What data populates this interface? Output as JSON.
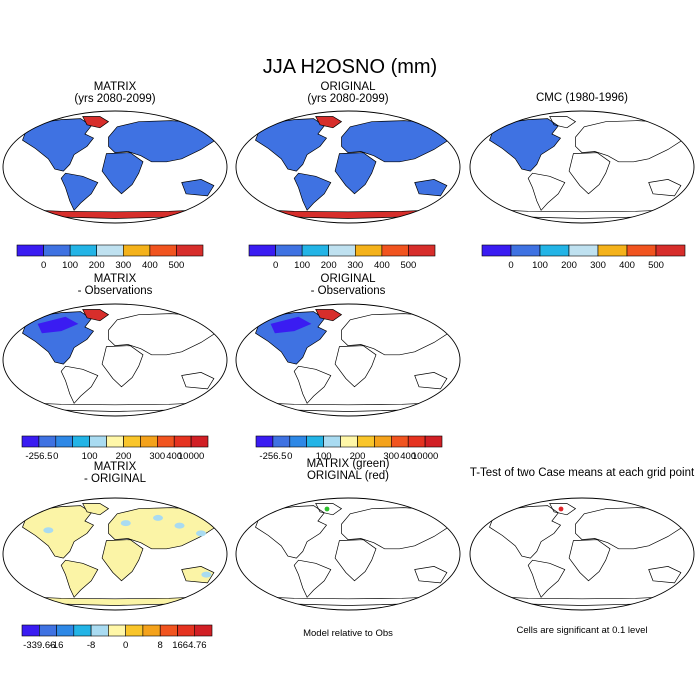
{
  "figure": {
    "title": "JJA H2OSNO (mm)"
  },
  "colors": {
    "scale6": [
      "#3a1cf2",
      "#3f72e2",
      "#23b4e6",
      "#bfe1f0",
      "#f4b21b",
      "#f1541f",
      "#d72e2b"
    ],
    "scale11": [
      "#3a1cf2",
      "#3f72e2",
      "#2e88e6",
      "#23b4e6",
      "#a9dbf1",
      "#fff7a8",
      "#f9c52a",
      "#f4a21b",
      "#f1541f",
      "#e53320",
      "#d11f25"
    ],
    "blue_fill": "#3f72e2",
    "red_fill": "#d72e2b",
    "diff_fill": "#fbf4a6",
    "diff_spot": "#a9dbf1"
  },
  "chart_data": [
    {
      "id": "matrix",
      "type": "heatmap",
      "title_lines": [
        "MATRIX",
        "(yrs 2080-2099)"
      ],
      "fill_pattern": "all-land",
      "colorbar": {
        "ticks": [
          "0",
          "100",
          "200",
          "300",
          "400",
          "500"
        ]
      }
    },
    {
      "id": "original",
      "type": "heatmap",
      "title_lines": [
        "ORIGINAL",
        "(yrs 2080-2099)"
      ],
      "fill_pattern": "all-land",
      "colorbar": {
        "ticks": [
          "0",
          "100",
          "200",
          "300",
          "400",
          "500"
        ]
      }
    },
    {
      "id": "cmc",
      "type": "heatmap",
      "title_lines": [
        "CMC (1980-1996)"
      ],
      "fill_pattern": "north-america",
      "colorbar": {
        "ticks": [
          "0",
          "100",
          "200",
          "300",
          "400",
          "500"
        ]
      }
    },
    {
      "id": "matrix-obs",
      "type": "heatmap",
      "title_lines": [
        "MATRIX",
        "- Observations"
      ],
      "fill_pattern": "north-america-diff",
      "colorbar": {
        "ticks": [
          "-256.5",
          "0",
          "100",
          "200",
          "300",
          "400",
          "10000"
        ]
      }
    },
    {
      "id": "original-obs",
      "type": "heatmap",
      "title_lines": [
        "ORIGINAL",
        "- Observations"
      ],
      "fill_pattern": "north-america-diff",
      "colorbar": {
        "ticks": [
          "-256.5",
          "0",
          "100",
          "200",
          "300",
          "400",
          "10000"
        ]
      }
    },
    {
      "id": "matrix-original",
      "type": "heatmap",
      "title_lines": [
        "MATRIX",
        "- ORIGINAL"
      ],
      "fill_pattern": "diff-land",
      "colorbar": {
        "ticks": [
          "-339.66",
          "-16",
          "-8",
          "0",
          "8",
          "16",
          "64.76"
        ]
      }
    },
    {
      "id": "sig-model-obs",
      "type": "heatmap",
      "title_lines": [
        "MATRIX (green)",
        "ORIGINAL (red)"
      ],
      "fill_pattern": "outline",
      "note": "Model relative to Obs"
    },
    {
      "id": "ttest",
      "type": "heatmap",
      "title_lines": [
        "T-Test of two Case means at each grid point"
      ],
      "fill_pattern": "outline",
      "note": "Cells are significant at 0.1 level"
    }
  ]
}
